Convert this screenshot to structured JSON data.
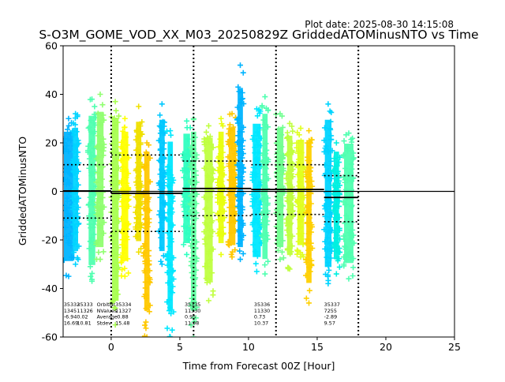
{
  "plot_date": "Plot date: 2025-08-30 14:15:08",
  "chart_data": {
    "type": "scatter",
    "title": "S-O3M_GOME_VOD_XX_M03_20250829Z GriddedATOMinusNTO vs Time",
    "xlabel": "Time from Forecast 00Z [Hour]",
    "ylabel": "GriddedATOMinusNTO",
    "xlim": [
      -3.5,
      25
    ],
    "ylim": [
      -60,
      60
    ],
    "xticks": [
      "0",
      "5",
      "10",
      "15",
      "20",
      "25"
    ],
    "yticks": [
      "-60",
      "-40",
      "-20",
      "0",
      "20",
      "40",
      "60"
    ],
    "xtick_values": [
      0,
      5,
      10,
      15,
      20,
      25
    ],
    "ytick_values": [
      -60,
      -40,
      -20,
      0,
      20,
      40,
      60
    ],
    "vlines": [
      0,
      6,
      12,
      18
    ],
    "zero_line": 0,
    "orbits": [
      {
        "nr": "35332",
        "nvalues": "1345",
        "average": "-6.94",
        "stdev": "16.69",
        "range": [
          -3.5,
          -1.5
        ],
        "mean": 0.2,
        "upper": 11,
        "lower": -11,
        "clusters": [
          {
            "x": -3.1,
            "w": 0.8,
            "top": 30,
            "bot": -35,
            "color": "#00b4ff"
          },
          {
            "x": -2.6,
            "w": 0.5,
            "top": 32,
            "bot": -30,
            "color": "#00d4ff"
          }
        ]
      },
      {
        "nr": "35333",
        "nvalues": "11326",
        "average": "0.02",
        "stdev": "10.81",
        "range": [
          -1.5,
          0
        ],
        "mean": 0.2,
        "upper": 11,
        "lower": -11,
        "clusters": [
          {
            "x": -1.4,
            "w": 0.6,
            "top": 38,
            "bot": -37,
            "color": "#50ffb0"
          },
          {
            "x": -0.8,
            "w": 0.6,
            "top": 40,
            "bot": -28,
            "color": "#90ff70"
          }
        ]
      },
      {
        "nr": "35334",
        "nvalues": "11327",
        "average": "-0.88",
        "stdev": "15.48",
        "range": [
          0,
          5.2
        ],
        "mean": -0.8,
        "upper": 15,
        "lower": -16.5,
        "clusters": [
          {
            "x": 0.3,
            "w": 0.6,
            "top": 37,
            "bot": -55,
            "color": "#a8ff50"
          },
          {
            "x": 1.0,
            "w": 0.6,
            "top": 30,
            "bot": -35,
            "color": "#ffff00"
          },
          {
            "x": 2.0,
            "w": 0.5,
            "top": 35,
            "bot": -25,
            "color": "#f0e000"
          },
          {
            "x": 2.6,
            "w": 0.5,
            "top": 20,
            "bot": -60,
            "color": "#ffc800"
          },
          {
            "x": 3.7,
            "w": 0.5,
            "top": 36,
            "bot": -30,
            "color": "#00c8ff"
          },
          {
            "x": 4.3,
            "w": 0.5,
            "top": 25,
            "bot": -60,
            "color": "#00e8ff"
          }
        ]
      },
      {
        "nr": "35335",
        "nvalues": "11330",
        "average": "0.95",
        "stdev": "11.08",
        "range": [
          5.2,
          10.2
        ],
        "mean": 1.2,
        "upper": 12.5,
        "lower": -10,
        "clusters": [
          {
            "x": 5.5,
            "w": 0.6,
            "top": 29,
            "bot": -26,
            "color": "#30ffc0"
          },
          {
            "x": 6.0,
            "w": 0.5,
            "top": 30,
            "bot": -60,
            "color": "#60ffa0"
          },
          {
            "x": 7.1,
            "w": 0.7,
            "top": 27,
            "bot": -45,
            "color": "#c0ff40"
          },
          {
            "x": 8.0,
            "w": 0.5,
            "top": 30,
            "bot": -26,
            "color": "#e8ff10"
          },
          {
            "x": 8.8,
            "w": 0.6,
            "top": 32,
            "bot": -27,
            "color": "#ffc800"
          },
          {
            "x": 9.4,
            "w": 0.5,
            "top": 52,
            "bot": -28,
            "color": "#00b4ff"
          }
        ]
      },
      {
        "nr": "35336",
        "nvalues": "11330",
        "average": "0.73",
        "stdev": "10.37",
        "range": [
          10.2,
          15.5
        ],
        "mean": 0.8,
        "upper": 11,
        "lower": -9.5,
        "clusters": [
          {
            "x": 10.6,
            "w": 0.7,
            "top": 34,
            "bot": -33,
            "color": "#00e8ff"
          },
          {
            "x": 11.2,
            "w": 0.5,
            "top": 39,
            "bot": -34,
            "color": "#50ffb0"
          },
          {
            "x": 12.3,
            "w": 0.6,
            "top": 32,
            "bot": -28,
            "color": "#70ff90"
          },
          {
            "x": 13.0,
            "w": 0.5,
            "top": 28,
            "bot": -32,
            "color": "#c0ff40"
          },
          {
            "x": 13.8,
            "w": 0.6,
            "top": 26,
            "bot": -27,
            "color": "#e0ff20"
          },
          {
            "x": 14.4,
            "w": 0.5,
            "top": 25,
            "bot": -46,
            "color": "#ffd000"
          }
        ]
      },
      {
        "nr": "35337",
        "nvalues": "7255",
        "average": "-2.89",
        "stdev": "9.57",
        "range": [
          15.5,
          18
        ],
        "mean": -2.5,
        "upper": 6.5,
        "lower": -12.5,
        "clusters": [
          {
            "x": 15.8,
            "w": 0.6,
            "top": 36,
            "bot": -38,
            "color": "#00d4ff"
          },
          {
            "x": 16.4,
            "w": 0.5,
            "top": 20,
            "bot": -34,
            "color": "#00f0e0"
          },
          {
            "x": 17.3,
            "w": 0.8,
            "top": 24,
            "bot": -36,
            "color": "#50ffb0"
          }
        ]
      }
    ],
    "stats_legend": {
      "labels": [
        "OrbitNr",
        "NValues",
        "Average",
        "Stdev"
      ]
    }
  }
}
